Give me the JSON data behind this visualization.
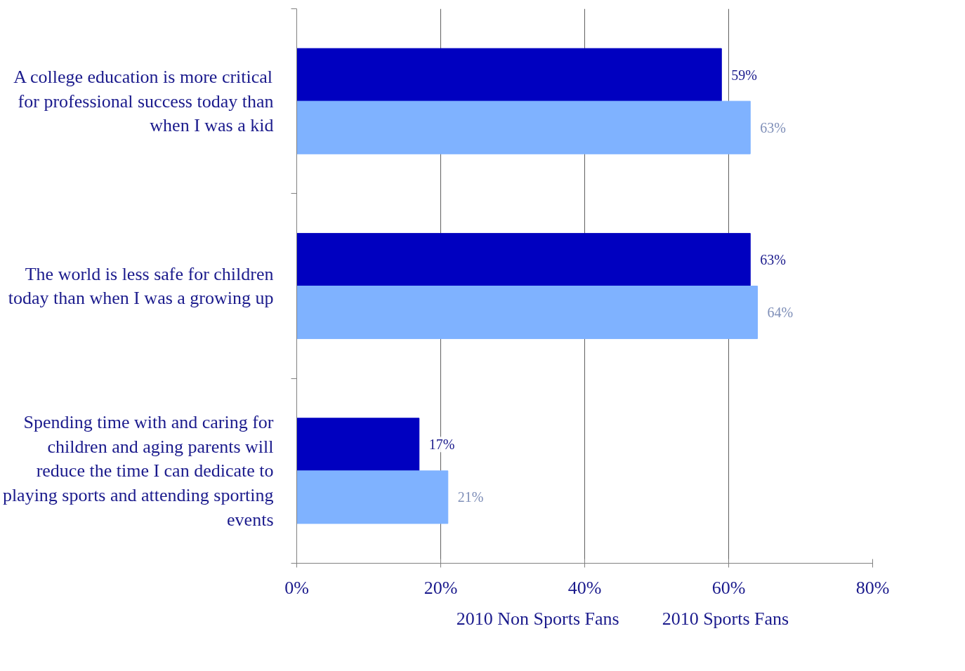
{
  "chart_data": {
    "type": "bar",
    "orientation": "horizontal",
    "categories": [
      "A college education is more critical for professional success today than when I was a kid",
      "The world is less safe for children today than when I was a growing up",
      "Spending time with and caring for children and aging parents will reduce the time I can dedicate to playing sports and attending sporting events"
    ],
    "series": [
      {
        "name": "2010 Non Sports Fans",
        "color": "#0000c0",
        "values": [
          59,
          63,
          17
        ],
        "value_labels": [
          "59%",
          "63%",
          "17%"
        ]
      },
      {
        "name": "2010 Sports Fans",
        "color": "#7fb2ff",
        "values": [
          63,
          64,
          21
        ],
        "value_labels": [
          "63%",
          "64%",
          "21%"
        ]
      }
    ],
    "xlim": [
      0,
      80
    ],
    "xticks": [
      {
        "value": 0,
        "label": "0%"
      },
      {
        "value": 20,
        "label": "20%"
      },
      {
        "value": 40,
        "label": "40%"
      },
      {
        "value": 60,
        "label": "60%"
      },
      {
        "value": 80,
        "label": "80%"
      }
    ],
    "grid": "x",
    "legend": "bottom"
  }
}
